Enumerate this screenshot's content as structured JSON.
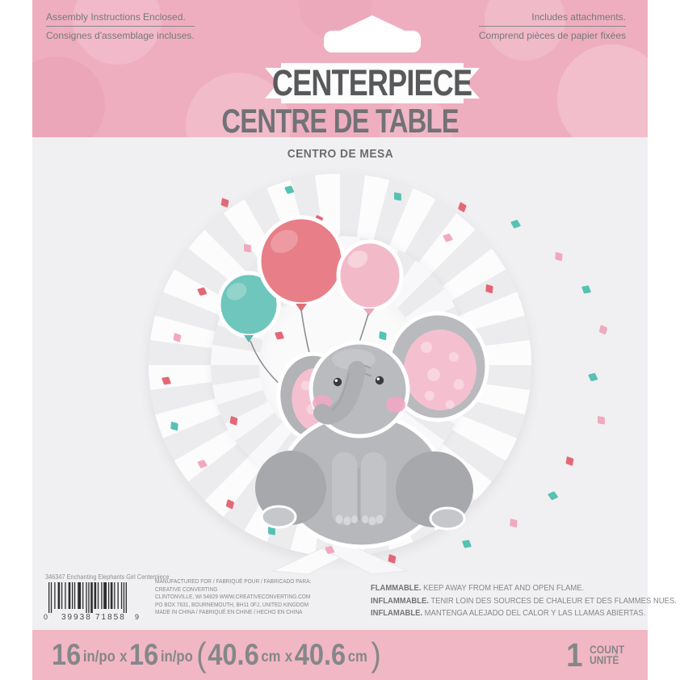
{
  "header": {
    "left_note": {
      "en": "Assembly Instructions Enclosed.",
      "fr": "Consignes d'assemblage incluses."
    },
    "right_note": {
      "en": "Includes attachments.",
      "fr": "Comprend pièces de papier fixées"
    },
    "title_en": "CENTERPIECE",
    "title_fr": "CENTRE DE TABLE",
    "title_es": "CENTRO DE MESA"
  },
  "artwork": {
    "description": "Gray baby elephant sitting in front of a white pleated paper fan rosette with confetti, holding teal, coral and pink balloons with its trunk, on a fold-out stand",
    "balloons": [
      "teal",
      "coral",
      "pink"
    ]
  },
  "footer": {
    "item_label": "346347 Enchanting Elephants Girl Centerpiece",
    "upc": {
      "lead": "0",
      "group1": "39938",
      "group2": "71858",
      "check": "9"
    },
    "manufacturer": [
      "MANUFACTURED FOR / FABRIQUÉ POUR / FABRICADO PARA:",
      "CREATIVE CONVERTING",
      "CLINTONVILLE, WI 54929  WWW.CREATIVECONVERTING.COM",
      "PO BOX 7631, BOURNEMOUTH,  BH11 0FJ, UNITED KINGDOM",
      "MADE IN CHINA / FABRIQUÉ EN CHINE / HECHO EN CHINA"
    ],
    "warnings": [
      {
        "lead": "FLAMMABLE.",
        "text": "KEEP AWAY FROM HEAT AND OPEN FLAME."
      },
      {
        "lead": "INFLAMMABLE.",
        "text": "TENIR LOIN DES SOURCES DE CHALEUR ET DES FLAMMES NUES."
      },
      {
        "lead": "INFLAMABLE.",
        "text": "MANTENGA ALEJADO DEL CALOR Y LAS LLAMAS ABIERTAS."
      }
    ]
  },
  "size_bar": {
    "in_value": "16",
    "in_unit": "in/po",
    "times": "x",
    "open_paren": "(",
    "cm_value": "40.6",
    "cm_unit": "cm",
    "close_paren": ")",
    "count_value": "1",
    "count_en": "COUNT",
    "count_fr": "UNITÉ"
  },
  "colors": {
    "band_pink": "#efaec0",
    "bottom_band_pink": "#f2b7c4",
    "card_gray": "#f0eff1",
    "title_gray": "#58595b",
    "balloon_teal": "#6ec6bd",
    "balloon_coral": "#e87e88",
    "balloon_pink": "#f2bac9",
    "elephant_gray": "#b7b8bb",
    "ear_pink": "#f4c0d0",
    "confetti": [
      "#e2606f",
      "#4cbfae",
      "#f0a4ba"
    ]
  }
}
